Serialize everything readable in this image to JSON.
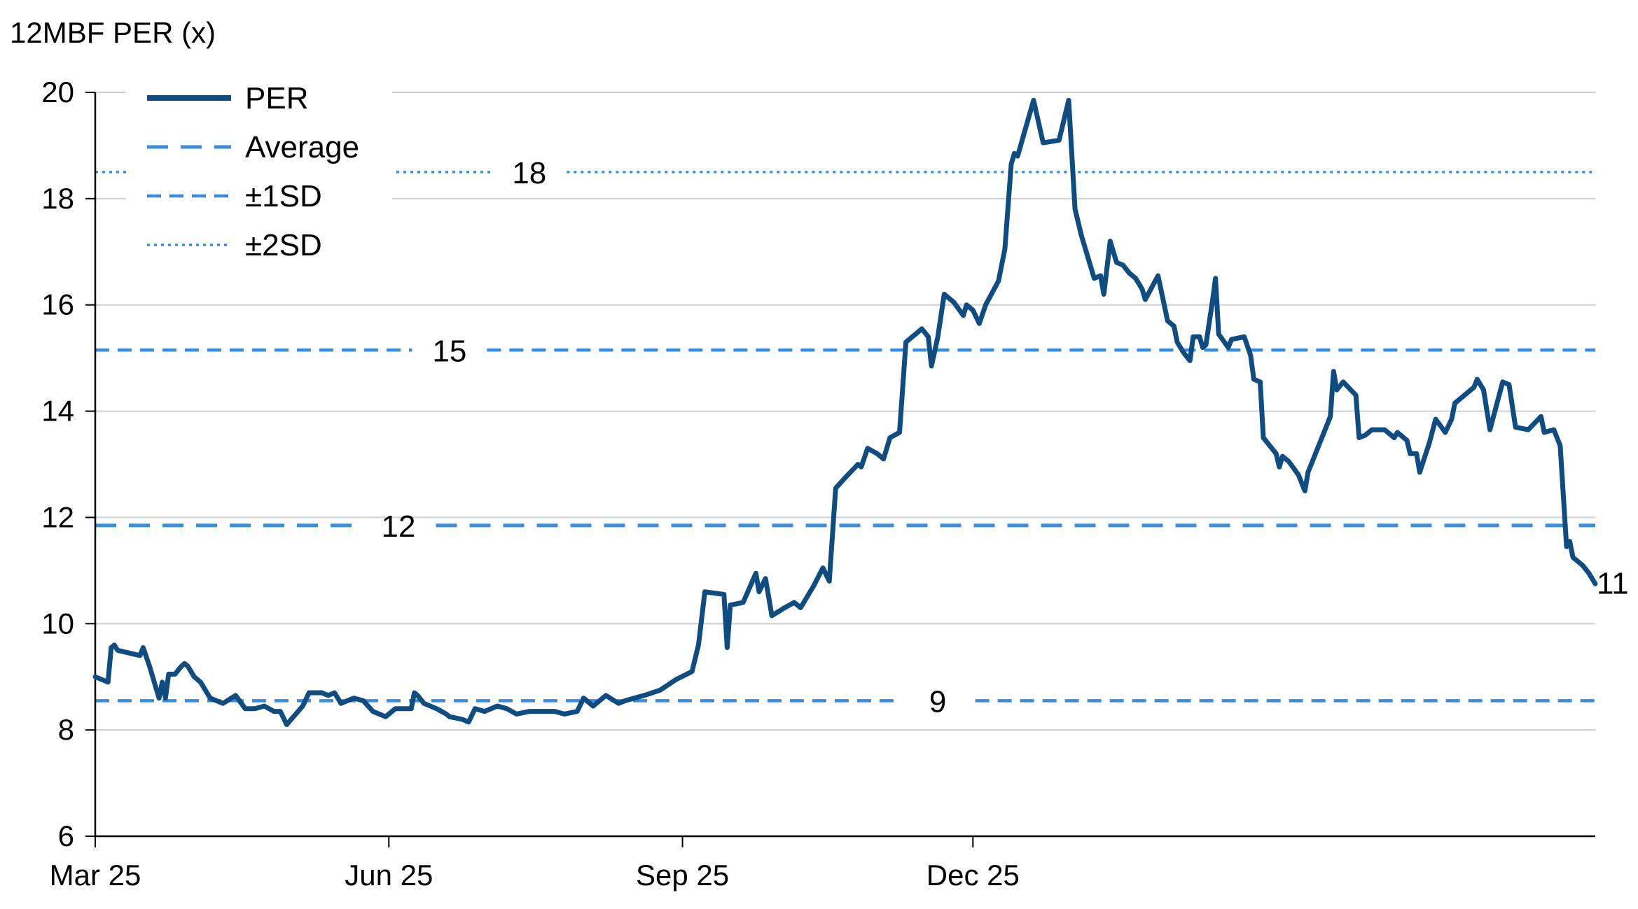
{
  "chart_data": {
    "type": "line",
    "title": "",
    "ylabel": "12MBF PER (x)",
    "xlabel": "",
    "ylim": [
      6,
      20
    ],
    "yticks": [
      "6",
      "8",
      "10",
      "12",
      "14",
      "16",
      "18",
      "20"
    ],
    "xticks": [
      "Mar 25",
      "Jun 25",
      "Sep 25",
      "Dec 25"
    ],
    "grid": true,
    "legend_position": "top-left",
    "colors": {
      "per": "#0f4c81",
      "ref": "#3a8dde",
      "grid": "#d0d0d0"
    },
    "legend": [
      {
        "label": "PER",
        "style": "solid"
      },
      {
        "label": "Average",
        "style": "dashed"
      },
      {
        "label": "±1SD",
        "style": "shortdash"
      },
      {
        "label": "±2SD",
        "style": "dotted"
      }
    ],
    "reference_lines": [
      {
        "name": "Average",
        "value": 11.85,
        "label": "12",
        "style": "dashed",
        "label_at": "Jun 4"
      },
      {
        "name": "+1SD",
        "value": 15.15,
        "label": "15",
        "style": "shortdash",
        "label_at": "Jun 20"
      },
      {
        "name": "-1SD",
        "value": 8.55,
        "label": "9",
        "style": "shortdash",
        "label_at": "Nov 20"
      },
      {
        "name": "+2SD",
        "value": 18.5,
        "label": "18",
        "style": "dotted",
        "label_at": "Jul 15"
      }
    ],
    "end_label": "11",
    "series": [
      {
        "name": "PER",
        "points": [
          [
            "Mar 1",
            9.0
          ],
          [
            "Mar 5",
            8.9
          ],
          [
            "Mar 6",
            9.55
          ],
          [
            "Mar 7",
            9.6
          ],
          [
            "Mar 8",
            9.5
          ],
          [
            "Mar 15",
            9.4
          ],
          [
            "Mar 16",
            9.55
          ],
          [
            "Mar 18",
            9.2
          ],
          [
            "Mar 21",
            8.6
          ],
          [
            "Mar 22",
            8.9
          ],
          [
            "Mar 23",
            8.6
          ],
          [
            "Mar 24",
            9.05
          ],
          [
            "Mar 26",
            9.05
          ],
          [
            "Mar 28",
            9.2
          ],
          [
            "Mar 29",
            9.25
          ],
          [
            "Mar 30",
            9.2
          ],
          [
            "Apr 1",
            9.0
          ],
          [
            "Apr 3",
            8.9
          ],
          [
            "Apr 6",
            8.6
          ],
          [
            "Apr 10",
            8.5
          ],
          [
            "Apr 14",
            8.65
          ],
          [
            "Apr 17",
            8.4
          ],
          [
            "Apr 20",
            8.4
          ],
          [
            "Apr 23",
            8.45
          ],
          [
            "Apr 26",
            8.35
          ],
          [
            "Apr 28",
            8.35
          ],
          [
            "Apr 30",
            8.1
          ],
          [
            "May 5",
            8.45
          ],
          [
            "May 7",
            8.7
          ],
          [
            "May 11",
            8.7
          ],
          [
            "May 13",
            8.65
          ],
          [
            "May 15",
            8.7
          ],
          [
            "May 17",
            8.5
          ],
          [
            "May 21",
            8.6
          ],
          [
            "May 24",
            8.55
          ],
          [
            "May 27",
            8.35
          ],
          [
            "May 31",
            8.25
          ],
          [
            "Jun 3",
            8.4
          ],
          [
            "Jun 8",
            8.4
          ],
          [
            "Jun 9",
            8.7
          ],
          [
            "Jun 10",
            8.65
          ],
          [
            "Jun 12",
            8.5
          ],
          [
            "Jun 16",
            8.4
          ],
          [
            "Jun 19",
            8.3
          ],
          [
            "Jun 20",
            8.25
          ],
          [
            "Jun 24",
            8.2
          ],
          [
            "Jun 26",
            8.15
          ],
          [
            "Jun 28",
            8.4
          ],
          [
            "Jul 1",
            8.35
          ],
          [
            "Jul 5",
            8.45
          ],
          [
            "Jul 8",
            8.4
          ],
          [
            "Jul 11",
            8.3
          ],
          [
            "Jul 15",
            8.35
          ],
          [
            "Jul 19",
            8.35
          ],
          [
            "Jul 23",
            8.35
          ],
          [
            "Jul 26",
            8.3
          ],
          [
            "Jul 30",
            8.35
          ],
          [
            "Aug 1",
            8.6
          ],
          [
            "Aug 4",
            8.45
          ],
          [
            "Aug 6",
            8.55
          ],
          [
            "Aug 8",
            8.65
          ],
          [
            "Aug 12",
            8.5
          ],
          [
            "Aug 14",
            8.55
          ],
          [
            "Aug 20",
            8.65
          ],
          [
            "Aug 25",
            8.75
          ],
          [
            "Aug 30",
            8.95
          ],
          [
            "Sep 4",
            9.1
          ],
          [
            "Sep 6",
            9.6
          ],
          [
            "Sep 8",
            10.6
          ],
          [
            "Sep 14",
            10.55
          ],
          [
            "Sep 15",
            9.55
          ],
          [
            "Sep 16",
            10.35
          ],
          [
            "Sep 20",
            10.4
          ],
          [
            "Sep 24",
            10.95
          ],
          [
            "Sep 25",
            10.6
          ],
          [
            "Sep 27",
            10.85
          ],
          [
            "Sep 29",
            10.15
          ],
          [
            "Oct 3",
            10.3
          ],
          [
            "Oct 6",
            10.4
          ],
          [
            "Oct 8",
            10.3
          ],
          [
            "Oct 12",
            10.7
          ],
          [
            "Oct 15",
            11.05
          ],
          [
            "Oct 17",
            10.8
          ],
          [
            "Oct 19",
            12.55
          ],
          [
            "Oct 22",
            12.75
          ],
          [
            "Oct 26",
            13.0
          ],
          [
            "Oct 27",
            12.95
          ],
          [
            "Oct 29",
            13.3
          ],
          [
            "Nov 1",
            13.2
          ],
          [
            "Nov 3",
            13.1
          ],
          [
            "Nov 5",
            13.5
          ],
          [
            "Nov 8",
            13.6
          ],
          [
            "Nov 10",
            15.3
          ],
          [
            "Nov 15",
            15.55
          ],
          [
            "Nov 17",
            15.4
          ],
          [
            "Nov 18",
            14.85
          ],
          [
            "Nov 20",
            15.4
          ],
          [
            "Nov 22",
            16.2
          ],
          [
            "Nov 25",
            16.05
          ],
          [
            "Nov 28",
            15.8
          ],
          [
            "Nov 29",
            16.0
          ],
          [
            "Dec 1",
            15.9
          ],
          [
            "Dec 3",
            15.65
          ],
          [
            "Dec 5",
            16.0
          ],
          [
            "Dec 9",
            16.45
          ],
          [
            "Dec 11",
            17.05
          ],
          [
            "Dec 13",
            18.65
          ],
          [
            "Dec 14",
            18.85
          ],
          [
            "Dec 15",
            18.8
          ],
          [
            "Dec 20",
            19.85
          ],
          [
            "Dec 23",
            19.05
          ],
          [
            "Dec 28",
            19.1
          ],
          [
            "Dec 31",
            19.85
          ],
          [
            "Jan 2",
            17.8
          ],
          [
            "Jan 4",
            17.3
          ],
          [
            "Jan 8",
            16.5
          ],
          [
            "Jan 10",
            16.55
          ],
          [
            "Jan 11",
            16.2
          ],
          [
            "Jan 13",
            17.2
          ],
          [
            "Jan 15",
            16.8
          ],
          [
            "Jan 17",
            16.75
          ],
          [
            "Jan 19",
            16.6
          ],
          [
            "Jan 21",
            16.5
          ],
          [
            "Jan 23",
            16.3
          ],
          [
            "Jan 24",
            16.1
          ],
          [
            "Jan 28",
            16.55
          ],
          [
            "Jan 31",
            15.7
          ],
          [
            "Feb 2",
            15.6
          ],
          [
            "Feb 3",
            15.3
          ],
          [
            "Feb 5",
            15.1
          ],
          [
            "Feb 7",
            14.95
          ],
          [
            "Feb 8",
            15.4
          ],
          [
            "Feb 10",
            15.4
          ],
          [
            "Feb 11",
            15.2
          ],
          [
            "Feb 12",
            15.25
          ],
          [
            "Feb 14",
            16.05
          ],
          [
            "Feb 15",
            16.5
          ],
          [
            "Feb 16",
            15.45
          ],
          [
            "Feb 19",
            15.2
          ],
          [
            "Feb 20",
            15.35
          ],
          [
            "Feb 24",
            15.4
          ],
          [
            "Feb 26",
            15.05
          ],
          [
            "Feb 27",
            14.6
          ],
          [
            "Mar 1",
            14.55
          ],
          [
            "Mar 2",
            13.5
          ],
          [
            "Mar 6",
            13.2
          ],
          [
            "Mar 7",
            12.95
          ],
          [
            "Mar 8",
            13.15
          ],
          [
            "Mar 10",
            13.05
          ],
          [
            "Mar 13",
            12.8
          ],
          [
            "Mar 15",
            12.5
          ],
          [
            "Mar 16",
            12.85
          ],
          [
            "Mar 19",
            13.3
          ],
          [
            "Mar 23",
            13.9
          ],
          [
            "Mar 24",
            14.75
          ],
          [
            "Mar 25",
            14.4
          ],
          [
            "Mar 27",
            14.55
          ],
          [
            "Mar 31",
            14.3
          ],
          [
            "Apr 1",
            13.5
          ],
          [
            "Apr 3",
            13.55
          ],
          [
            "Apr 5",
            13.65
          ],
          [
            "Apr 9",
            13.65
          ],
          [
            "Apr 12",
            13.5
          ],
          [
            "Apr 13",
            13.6
          ],
          [
            "Apr 16",
            13.45
          ],
          [
            "Apr 17",
            13.2
          ],
          [
            "Apr 19",
            13.2
          ],
          [
            "Apr 20",
            12.85
          ],
          [
            "Apr 23",
            13.4
          ],
          [
            "Apr 25",
            13.85
          ],
          [
            "Apr 28",
            13.6
          ],
          [
            "Apr 30",
            13.85
          ],
          [
            "May 1",
            14.15
          ],
          [
            "May 7",
            14.45
          ],
          [
            "May 8",
            14.6
          ],
          [
            "May 10",
            14.4
          ],
          [
            "May 12",
            13.65
          ],
          [
            "May 16",
            14.55
          ],
          [
            "May 18",
            14.5
          ],
          [
            "May 20",
            13.7
          ],
          [
            "May 24",
            13.65
          ],
          [
            "May 28",
            13.9
          ],
          [
            "May 29",
            13.6
          ],
          [
            "Jun 1",
            13.65
          ],
          [
            "Jun 3",
            13.35
          ],
          [
            "Jun 5",
            11.45
          ],
          [
            "Jun 6",
            11.55
          ],
          [
            "Jun 7",
            11.25
          ],
          [
            "Jun 10",
            11.1
          ],
          [
            "Jun 12",
            10.95
          ],
          [
            "Jun 14",
            10.75
          ]
        ]
      }
    ]
  }
}
